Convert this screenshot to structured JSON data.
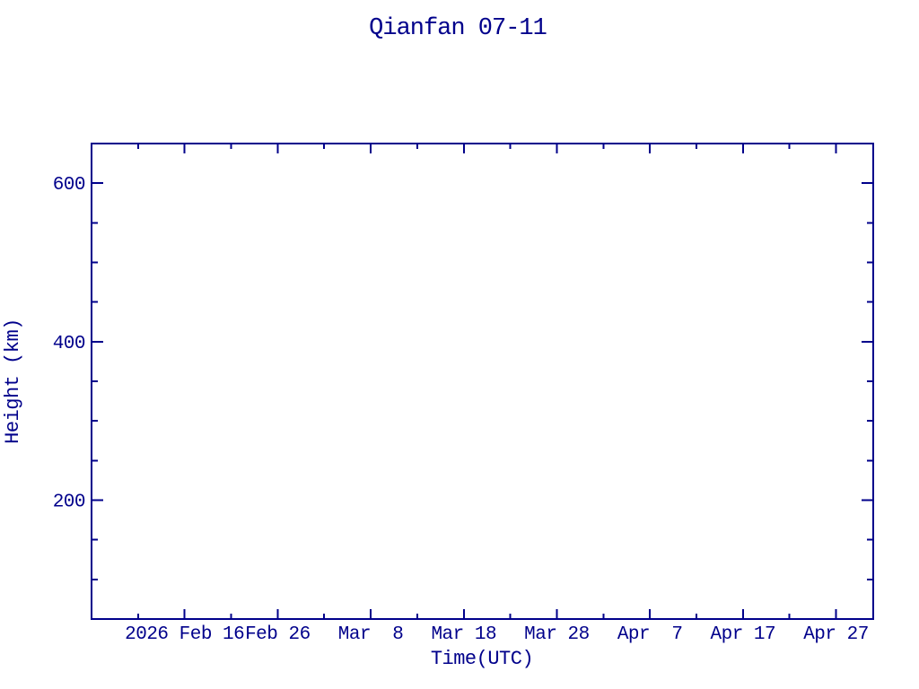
{
  "window": {
    "title": "Qianfan 07-11"
  },
  "colors": {
    "navy": "#00008B",
    "background": "#FFFFFF"
  },
  "chart_data": {
    "type": "line",
    "title": "Qianfan 07-11",
    "xlabel": "Time(UTC)",
    "ylabel": "Height (km)",
    "grid": false,
    "legend": null,
    "series": [],
    "x_axis": {
      "unit": "date",
      "range": [
        "2026 Feb 6",
        "2026 May 1"
      ],
      "range_days": 84,
      "major_ticks": [
        {
          "day": 10,
          "label": "2026 Feb 16"
        },
        {
          "day": 20,
          "label": "Feb 26"
        },
        {
          "day": 30,
          "label": "Mar  8"
        },
        {
          "day": 40,
          "label": "Mar 18"
        },
        {
          "day": 50,
          "label": "Mar 28"
        },
        {
          "day": 60,
          "label": "Apr  7"
        },
        {
          "day": 70,
          "label": "Apr 17"
        },
        {
          "day": 80,
          "label": "Apr 27"
        }
      ],
      "minor_tick_days": [
        5,
        15,
        25,
        35,
        45,
        55,
        65,
        75
      ]
    },
    "y_axis": {
      "unit": "km",
      "range_km": [
        50,
        650
      ],
      "major_ticks": [
        {
          "km": 200,
          "label": "200"
        },
        {
          "km": 400,
          "label": "400"
        },
        {
          "km": 600,
          "label": "600"
        }
      ],
      "minor_tick_kms": [
        100,
        150,
        250,
        300,
        350,
        450,
        500,
        550
      ]
    }
  }
}
